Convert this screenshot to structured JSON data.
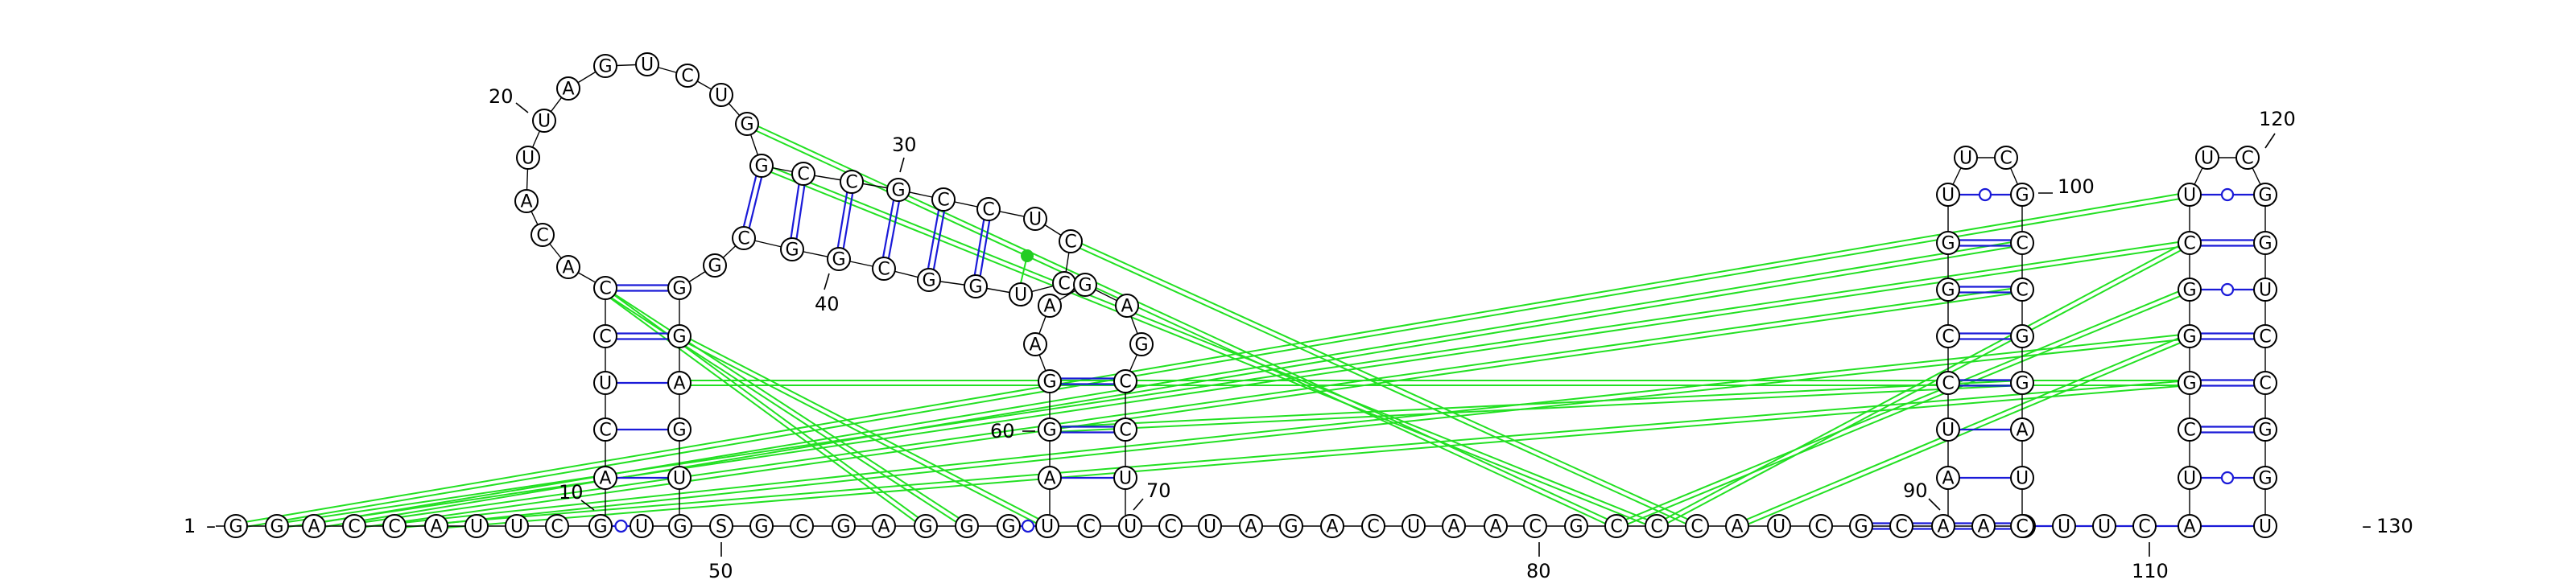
{
  "sequence": "GGACCAUUCGUGSGCGAGGGUCUCUAGACUAACGCCCAUCGCAAAUUC",
  "colors": {
    "backbone": "#000000",
    "canonical_pair": "#1a1ad8",
    "wobble_pair": "#1a1ad8",
    "tertiary_interaction": "#22e022"
  },
  "strand_labels": {
    "start": "1",
    "end": "130"
  },
  "position_labels": [
    "10",
    "20",
    "30",
    "40",
    "50",
    "60",
    "70",
    "80",
    "90",
    "100",
    "110",
    "120"
  ],
  "hairpin1_loop": [
    "A",
    "C",
    "A",
    "U",
    "U",
    "A",
    "G",
    "U",
    "C",
    "U",
    "G",
    "G"
  ],
  "bottom_row": [
    "G",
    "G",
    "A",
    "C",
    "C",
    "A",
    "U",
    "U",
    "C",
    "G",
    "U",
    "G",
    "S",
    "G",
    "C",
    "G",
    "A",
    "G",
    "G",
    "G",
    "U",
    "C",
    "U",
    "C",
    "U",
    "A",
    "G",
    "A",
    "C",
    "U",
    "A",
    "A",
    "C",
    "G",
    "C",
    "C",
    "C",
    "A",
    "U",
    "C",
    "G",
    "C",
    "A",
    "A",
    "A",
    "U",
    "U",
    "C"
  ]
}
